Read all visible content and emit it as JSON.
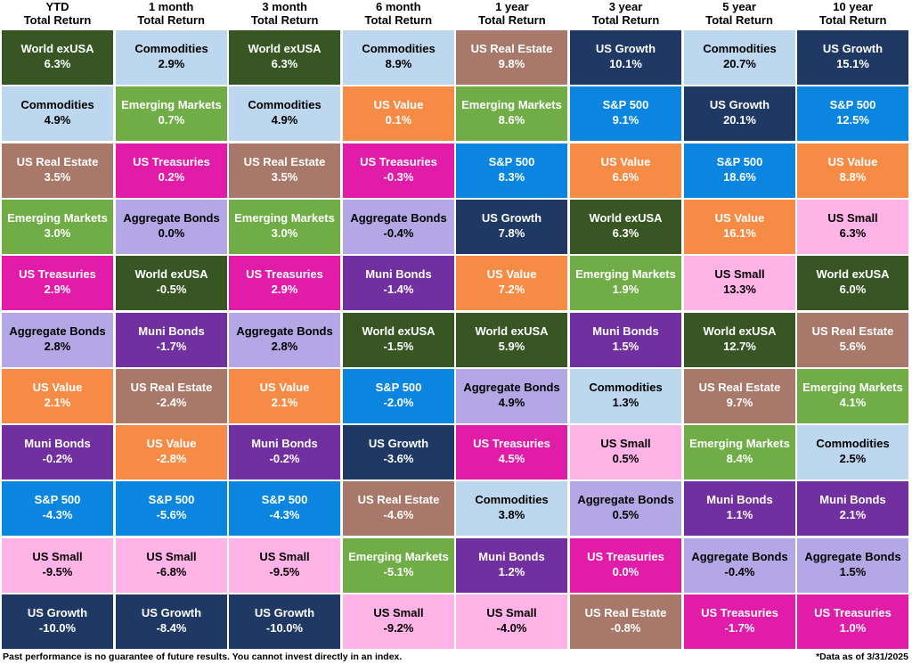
{
  "chart_data": {
    "type": "table",
    "periods": [
      {
        "line1": "YTD",
        "line2": "Total Return"
      },
      {
        "line1": "1 month",
        "line2": "Total Return"
      },
      {
        "line1": "3 month",
        "line2": "Total Return"
      },
      {
        "line1": "6 month",
        "line2": "Total Return"
      },
      {
        "line1": "1 year",
        "line2": "Total Return"
      },
      {
        "line1": "3 year",
        "line2": "Total Return"
      },
      {
        "line1": "5 year",
        "line2": "Total Return"
      },
      {
        "line1": "10 year",
        "line2": "Total Return"
      }
    ],
    "asset_colors": {
      "World exUSA": "#375623",
      "Commodities": "#BDD7EE",
      "US Real Estate": "#A8786A",
      "Emerging Markets": "#70AD47",
      "US Treasuries": "#E01CA8",
      "Aggregate Bonds": "#B4A7E5",
      "US Value": "#F58B45",
      "Muni Bonds": "#7030A0",
      "S&P 500": "#0A86E0",
      "US Small": "#FFB3E6",
      "US Growth": "#1F3864"
    },
    "columns": [
      [
        {
          "name": "World exUSA",
          "value": "6.3%"
        },
        {
          "name": "Commodities",
          "value": "4.9%"
        },
        {
          "name": "US Real Estate",
          "value": "3.5%"
        },
        {
          "name": "Emerging Markets",
          "value": "3.0%"
        },
        {
          "name": "US Treasuries",
          "value": "2.9%"
        },
        {
          "name": "Aggregate Bonds",
          "value": "2.8%"
        },
        {
          "name": "US Value",
          "value": "2.1%"
        },
        {
          "name": "Muni Bonds",
          "value": "-0.2%"
        },
        {
          "name": "S&P 500",
          "value": "-4.3%"
        },
        {
          "name": "US Small",
          "value": "-9.5%"
        },
        {
          "name": "US Growth",
          "value": "-10.0%"
        }
      ],
      [
        {
          "name": "Commodities",
          "value": "2.9%"
        },
        {
          "name": "Emerging Markets",
          "value": "0.7%"
        },
        {
          "name": "US Treasuries",
          "value": "0.2%"
        },
        {
          "name": "Aggregate Bonds",
          "value": "0.0%"
        },
        {
          "name": "World exUSA",
          "value": "-0.5%"
        },
        {
          "name": "Muni Bonds",
          "value": "-1.7%"
        },
        {
          "name": "US Real Estate",
          "value": "-2.4%"
        },
        {
          "name": "US Value",
          "value": "-2.8%"
        },
        {
          "name": "S&P 500",
          "value": "-5.6%"
        },
        {
          "name": "US Small",
          "value": "-6.8%"
        },
        {
          "name": "US Growth",
          "value": "-8.4%"
        }
      ],
      [
        {
          "name": "World exUSA",
          "value": "6.3%"
        },
        {
          "name": "Commodities",
          "value": "4.9%"
        },
        {
          "name": "US Real Estate",
          "value": "3.5%"
        },
        {
          "name": "Emerging Markets",
          "value": "3.0%"
        },
        {
          "name": "US Treasuries",
          "value": "2.9%"
        },
        {
          "name": "Aggregate Bonds",
          "value": "2.8%"
        },
        {
          "name": "US Value",
          "value": "2.1%"
        },
        {
          "name": "Muni Bonds",
          "value": "-0.2%"
        },
        {
          "name": "S&P 500",
          "value": "-4.3%"
        },
        {
          "name": "US Small",
          "value": "-9.5%"
        },
        {
          "name": "US Growth",
          "value": "-10.0%"
        }
      ],
      [
        {
          "name": "Commodities",
          "value": "8.9%"
        },
        {
          "name": "US Value",
          "value": "0.1%"
        },
        {
          "name": "US Treasuries",
          "value": "-0.3%"
        },
        {
          "name": "Aggregate Bonds",
          "value": "-0.4%"
        },
        {
          "name": "Muni Bonds",
          "value": "-1.4%"
        },
        {
          "name": "World exUSA",
          "value": "-1.5%"
        },
        {
          "name": "S&P 500",
          "value": "-2.0%"
        },
        {
          "name": "US Growth",
          "value": "-3.6%"
        },
        {
          "name": "US Real Estate",
          "value": "-4.6%"
        },
        {
          "name": "Emerging Markets",
          "value": "-5.1%"
        },
        {
          "name": "US Small",
          "value": "-9.2%"
        }
      ],
      [
        {
          "name": "US Real Estate",
          "value": "9.8%"
        },
        {
          "name": "Emerging Markets",
          "value": "8.6%"
        },
        {
          "name": "S&P 500",
          "value": "8.3%"
        },
        {
          "name": "US Growth",
          "value": "7.8%"
        },
        {
          "name": "US Value",
          "value": "7.2%"
        },
        {
          "name": "World exUSA",
          "value": "5.9%"
        },
        {
          "name": "Aggregate Bonds",
          "value": "4.9%"
        },
        {
          "name": "US Treasuries",
          "value": "4.5%"
        },
        {
          "name": "Commodities",
          "value": "3.8%"
        },
        {
          "name": "Muni Bonds",
          "value": "1.2%"
        },
        {
          "name": "US Small",
          "value": "-4.0%"
        }
      ],
      [
        {
          "name": "US Growth",
          "value": "10.1%"
        },
        {
          "name": "S&P 500",
          "value": "9.1%"
        },
        {
          "name": "US Value",
          "value": "6.6%"
        },
        {
          "name": "World exUSA",
          "value": "6.3%"
        },
        {
          "name": "Emerging Markets",
          "value": "1.9%"
        },
        {
          "name": "Muni Bonds",
          "value": "1.5%"
        },
        {
          "name": "Commodities",
          "value": "1.3%"
        },
        {
          "name": "US Small",
          "value": "0.5%"
        },
        {
          "name": "Aggregate Bonds",
          "value": "0.5%"
        },
        {
          "name": "US Treasuries",
          "value": "0.0%"
        },
        {
          "name": "US Real Estate",
          "value": "-0.8%"
        }
      ],
      [
        {
          "name": "Commodities",
          "value": "20.7%"
        },
        {
          "name": "US Growth",
          "value": "20.1%"
        },
        {
          "name": "S&P 500",
          "value": "18.6%"
        },
        {
          "name": "US Value",
          "value": "16.1%"
        },
        {
          "name": "US Small",
          "value": "13.3%"
        },
        {
          "name": "World exUSA",
          "value": "12.7%"
        },
        {
          "name": "US Real Estate",
          "value": "9.7%"
        },
        {
          "name": "Emerging Markets",
          "value": "8.4%"
        },
        {
          "name": "Muni Bonds",
          "value": "1.1%"
        },
        {
          "name": "Aggregate Bonds",
          "value": "-0.4%"
        },
        {
          "name": "US Treasuries",
          "value": "-1.7%"
        }
      ],
      [
        {
          "name": "US Growth",
          "value": "15.1%"
        },
        {
          "name": "S&P 500",
          "value": "12.5%"
        },
        {
          "name": "US Value",
          "value": "8.8%"
        },
        {
          "name": "US Small",
          "value": "6.3%"
        },
        {
          "name": "World exUSA",
          "value": "6.0%"
        },
        {
          "name": "US Real Estate",
          "value": "5.6%"
        },
        {
          "name": "Emerging Markets",
          "value": "4.1%"
        },
        {
          "name": "Commodities",
          "value": "2.5%"
        },
        {
          "name": "Muni Bonds",
          "value": "2.1%"
        },
        {
          "name": "Aggregate Bonds",
          "value": "1.5%"
        },
        {
          "name": "US Treasuries",
          "value": "1.0%"
        }
      ]
    ]
  },
  "footer": {
    "disclaimer": "Past performance is no guarantee of future results. You cannot invest directly in an index.",
    "data_as_of": "*Data as of 3/31/2025"
  }
}
